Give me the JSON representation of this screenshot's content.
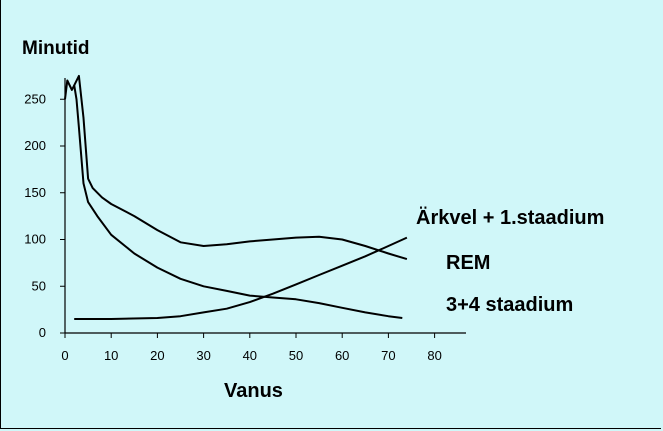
{
  "chart_data": {
    "type": "line",
    "title": "",
    "ylabel": "Minutid",
    "xlabel": "Vanus",
    "xlim": [
      0,
      85
    ],
    "ylim": [
      0,
      270
    ],
    "xticks": [
      0,
      10,
      20,
      30,
      40,
      50,
      60,
      70,
      80
    ],
    "yticks": [
      0,
      50,
      100,
      150,
      200,
      250
    ],
    "grid": false,
    "line_color": "#000000",
    "background": "#d0f7f9",
    "series": [
      {
        "name": "Ärkvel + 1.staadium",
        "x": [
          0,
          0.5,
          1.5,
          3,
          4,
          5,
          6,
          8,
          10,
          15,
          20,
          25,
          30,
          35,
          40,
          45,
          50,
          55,
          60,
          65,
          70,
          74
        ],
        "y": [
          250,
          270,
          260,
          275,
          230,
          165,
          155,
          145,
          138,
          125,
          110,
          97,
          93,
          95,
          98,
          100,
          102,
          103,
          100,
          93,
          85,
          79
        ]
      },
      {
        "name": "REM",
        "x": [
          2,
          2.5,
          3,
          4,
          5,
          7,
          10,
          15,
          20,
          25,
          30,
          35,
          40,
          45,
          50,
          55,
          60,
          65,
          70,
          73
        ],
        "y": [
          265,
          250,
          220,
          160,
          140,
          125,
          105,
          85,
          70,
          58,
          50,
          45,
          40,
          38,
          36,
          32,
          27,
          22,
          18,
          16
        ]
      },
      {
        "name": "3+4 staadium",
        "x": [
          2,
          10,
          20,
          25,
          30,
          35,
          40,
          45,
          50,
          55,
          60,
          65,
          70,
          74
        ],
        "y": [
          15,
          15,
          16,
          18,
          22,
          26,
          33,
          42,
          52,
          62,
          72,
          82,
          93,
          102
        ]
      }
    ]
  }
}
